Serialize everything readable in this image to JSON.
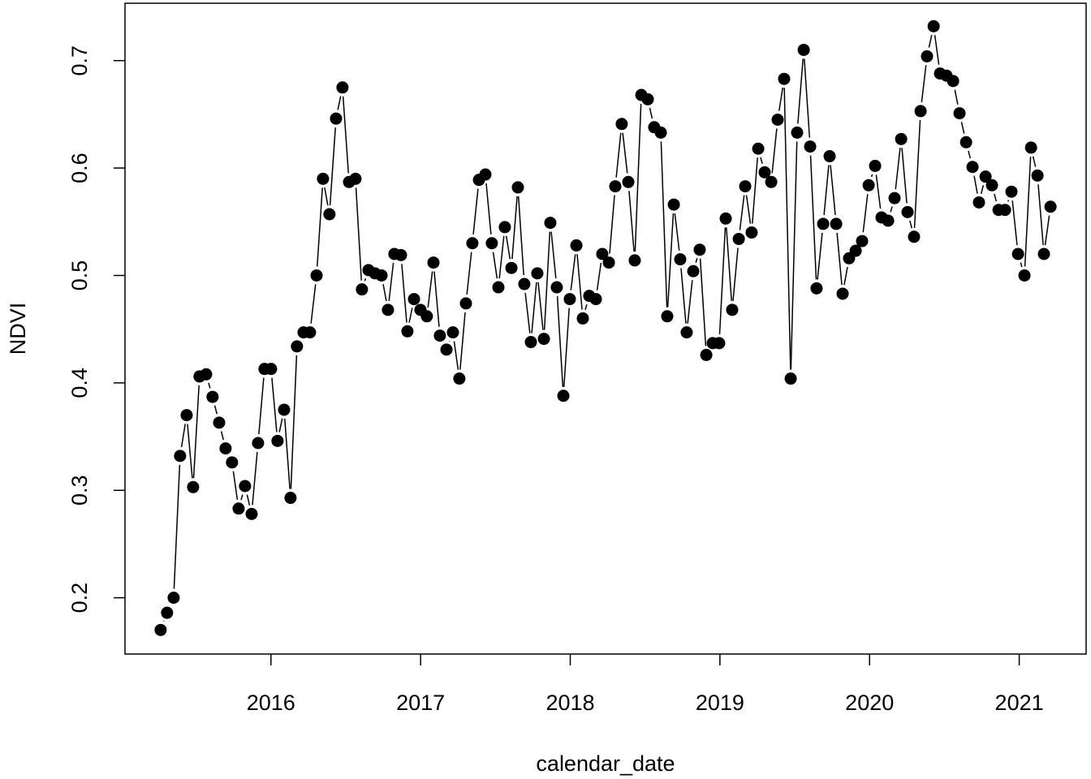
{
  "chart_data": {
    "type": "line",
    "xlabel": "calendar_date",
    "ylabel": "NDVI",
    "color": "#000000",
    "markers": true,
    "x": [
      2015.263,
      2015.306,
      2015.35,
      2015.393,
      2015.437,
      2015.48,
      2015.523,
      2015.567,
      2015.61,
      2015.654,
      2015.697,
      2015.74,
      2015.784,
      2015.827,
      2015.871,
      2015.914,
      2015.957,
      2016.001,
      2016.044,
      2016.088,
      2016.131,
      2016.174,
      2016.218,
      2016.261,
      2016.305,
      2016.348,
      2016.391,
      2016.435,
      2016.478,
      2016.522,
      2016.565,
      2016.608,
      2016.652,
      2016.695,
      2016.739,
      2016.782,
      2016.825,
      2016.869,
      2016.912,
      2016.956,
      2016.999,
      2017.042,
      2017.086,
      2017.129,
      2017.173,
      2017.216,
      2017.259,
      2017.303,
      2017.346,
      2017.39,
      2017.433,
      2017.476,
      2017.52,
      2017.563,
      2017.607,
      2017.65,
      2017.693,
      2017.737,
      2017.78,
      2017.824,
      2017.867,
      2017.91,
      2017.954,
      2017.997,
      2018.041,
      2018.084,
      2018.127,
      2018.171,
      2018.214,
      2018.258,
      2018.301,
      2018.344,
      2018.388,
      2018.431,
      2018.475,
      2018.518,
      2018.561,
      2018.605,
      2018.648,
      2018.692,
      2018.735,
      2018.778,
      2018.822,
      2018.865,
      2018.909,
      2018.952,
      2018.995,
      2019.039,
      2019.082,
      2019.126,
      2019.169,
      2019.212,
      2019.256,
      2019.299,
      2019.343,
      2019.386,
      2019.429,
      2019.473,
      2019.516,
      2019.56,
      2019.603,
      2019.646,
      2019.69,
      2019.733,
      2019.777,
      2019.82,
      2019.863,
      2019.907,
      2019.95,
      2019.994,
      2020.037,
      2020.08,
      2020.124,
      2020.167,
      2020.211,
      2020.254,
      2020.297,
      2020.341,
      2020.384,
      2020.428,
      2020.471,
      2020.514,
      2020.558,
      2020.601,
      2020.645,
      2020.688,
      2020.731,
      2020.775,
      2020.818,
      2020.862,
      2020.905,
      2020.948,
      2020.992,
      2021.035,
      2021.079,
      2021.122,
      2021.165,
      2021.209
    ],
    "values": [
      0.17,
      0.186,
      0.2,
      0.332,
      0.37,
      0.303,
      0.406,
      0.408,
      0.387,
      0.363,
      0.339,
      0.326,
      0.283,
      0.304,
      0.278,
      0.344,
      0.413,
      0.413,
      0.346,
      0.375,
      0.293,
      0.434,
      0.447,
      0.447,
      0.5,
      0.59,
      0.557,
      0.646,
      0.675,
      0.587,
      0.59,
      0.487,
      0.505,
      0.502,
      0.5,
      0.468,
      0.52,
      0.519,
      0.448,
      0.478,
      0.468,
      0.462,
      0.512,
      0.444,
      0.431,
      0.447,
      0.404,
      0.474,
      0.53,
      0.589,
      0.594,
      0.53,
      0.489,
      0.545,
      0.507,
      0.582,
      0.492,
      0.438,
      0.502,
      0.441,
      0.549,
      0.489,
      0.388,
      0.478,
      0.528,
      0.46,
      0.481,
      0.478,
      0.52,
      0.512,
      0.583,
      0.641,
      0.587,
      0.514,
      0.668,
      0.664,
      0.638,
      0.633,
      0.462,
      0.566,
      0.515,
      0.447,
      0.504,
      0.524,
      0.426,
      0.437,
      0.437,
      0.553,
      0.468,
      0.534,
      0.583,
      0.54,
      0.618,
      0.596,
      0.587,
      0.645,
      0.683,
      0.404,
      0.633,
      0.71,
      0.62,
      0.488,
      0.548,
      0.611,
      0.548,
      0.483,
      0.516,
      0.523,
      0.532,
      0.584,
      0.602,
      0.554,
      0.551,
      0.572,
      0.627,
      0.559,
      0.536,
      0.653,
      0.704,
      0.732,
      0.688,
      0.686,
      0.681,
      0.651,
      0.624,
      0.601,
      0.568,
      0.592,
      0.584,
      0.561,
      0.561,
      0.578,
      0.52,
      0.5,
      0.619,
      0.593,
      0.52,
      0.564
    ],
    "xlim": [
      2015.025,
      2021.447
    ],
    "xticks": [
      2016,
      2017,
      2018,
      2019,
      2020,
      2021
    ],
    "ylim": [
      0.1476,
      0.7534
    ],
    "yticks": [
      0.2,
      0.3,
      0.4,
      0.5,
      0.6,
      0.7
    ]
  }
}
